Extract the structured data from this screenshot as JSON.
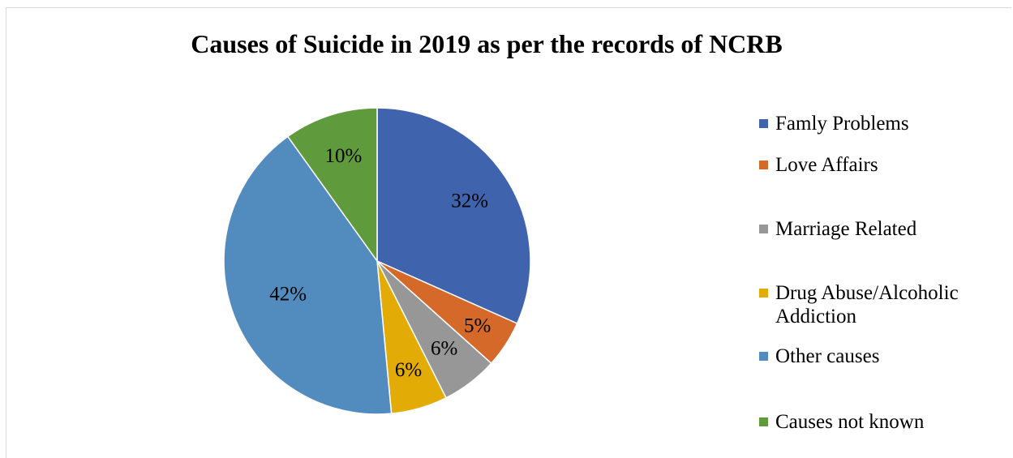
{
  "chart_data": {
    "type": "pie",
    "title": "Causes of Suicide in 2019 as per the records of NCRB",
    "slices": [
      {
        "label": "Famly Problems",
        "value": 32,
        "value_label": "32%",
        "color": "#4063ad"
      },
      {
        "label": "Love Affairs",
        "value": 5,
        "value_label": "5%",
        "color": "#d5692a"
      },
      {
        "label": "Marriage Related",
        "value": 6,
        "value_label": "6%",
        "color": "#979797"
      },
      {
        "label": "Drug Abuse/Alcoholic Addiction",
        "value": 6,
        "value_label": "6%",
        "color": "#e3ab05"
      },
      {
        "label": "Other causes",
        "value": 42,
        "value_label": "42%",
        "color": "#528bbe"
      },
      {
        "label": "Causes not known",
        "value": 10,
        "value_label": "10%",
        "color": "#5f9a3c"
      }
    ],
    "legend_position": "right",
    "start_angle": "12 o'clock",
    "direction": "clockwise"
  }
}
